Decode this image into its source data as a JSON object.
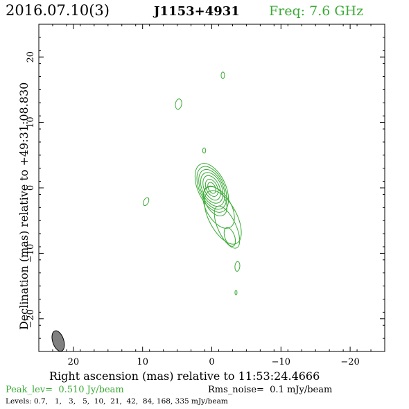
{
  "header": {
    "date": "2016.07.10(3)",
    "source": "J1153+4931",
    "freq": "Freq: 7.6 GHz"
  },
  "footer": {
    "peak": "Peak_lev=  0.510 Jy/beam",
    "rms": "Rms_noise=  0.1 mJy/beam",
    "levels": "Levels: 0.7,   1,   3,   5,  10,  21,  42,  84, 168, 335 mJy/beam"
  },
  "colors": {
    "green": "#3aaa35",
    "axis": "#000000",
    "beam_fill": "#808080"
  },
  "chart_data": {
    "type": "contour",
    "xlabel": "Right ascension (mas) relative to 11:53:24.4666",
    "ylabel": "Declination (mas) relative to +49:31:08.830",
    "xlim": [
      25,
      -25
    ],
    "ylim": [
      -25,
      25
    ],
    "xticks": [
      20,
      10,
      0,
      -10,
      -20
    ],
    "xtick_labels": [
      "20",
      "10",
      "0",
      "−10",
      "−20"
    ],
    "yticks": [
      20,
      10,
      0,
      -10,
      -20
    ],
    "ytick_labels": [
      "20",
      "10",
      "0",
      "−10",
      "−20"
    ],
    "contour_levels_mjy": [
      0.7,
      1,
      3,
      5,
      10,
      21,
      42,
      84,
      168,
      335
    ],
    "peak_jy": 0.51,
    "rms_mjy": 0.1,
    "core": {
      "ra": 0.0,
      "dec": 0.0,
      "pa_deg": -25
    },
    "core_contours": [
      {
        "a": 0.9,
        "b": 0.5
      },
      {
        "a": 1.4,
        "b": 0.8
      },
      {
        "a": 2.0,
        "b": 1.1
      },
      {
        "a": 2.5,
        "b": 1.4
      },
      {
        "a": 3.0,
        "b": 1.6
      },
      {
        "a": 3.5,
        "b": 1.8
      },
      {
        "a": 4.0,
        "b": 2.0
      }
    ],
    "jet_features": [
      {
        "ra": -0.5,
        "dec": -2.0,
        "a": 2.5,
        "b": 1.4,
        "pa_deg": -30
      },
      {
        "ra": -1.0,
        "dec": -3.0,
        "a": 3.5,
        "b": 1.8,
        "pa_deg": -30
      },
      {
        "ra": -1.6,
        "dec": -4.5,
        "a": 4.5,
        "b": 2.0,
        "pa_deg": -28
      },
      {
        "ra": -2.2,
        "dec": -6.0,
        "a": 3.5,
        "b": 1.3,
        "pa_deg": -25
      },
      {
        "ra": -2.6,
        "dec": -7.5,
        "a": 1.5,
        "b": 0.7,
        "pa_deg": -20
      }
    ],
    "isolated_components": [
      {
        "ra": 4.8,
        "dec": 12.8,
        "a": 0.8,
        "b": 0.45,
        "pa_deg": 10
      },
      {
        "ra": -1.6,
        "dec": 17.2,
        "a": 0.5,
        "b": 0.25,
        "pa_deg": 0
      },
      {
        "ra": 1.1,
        "dec": 5.7,
        "a": 0.4,
        "b": 0.22,
        "pa_deg": 0
      },
      {
        "ra": 9.5,
        "dec": -2.1,
        "a": 0.65,
        "b": 0.35,
        "pa_deg": 25
      },
      {
        "ra": -3.7,
        "dec": -12.0,
        "a": 0.75,
        "b": 0.35,
        "pa_deg": 5
      },
      {
        "ra": -3.5,
        "dec": -16.0,
        "a": 0.35,
        "b": 0.15,
        "pa_deg": 0
      }
    ],
    "beam": {
      "ra": 22.2,
      "dec": -23.4,
      "major": 2.4,
      "minor": 1.2,
      "pa_deg": -18
    }
  }
}
